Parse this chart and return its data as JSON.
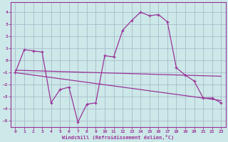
{
  "xlabel": "Windchill (Refroidissement éolien,°C)",
  "background_color": "#cce8e8",
  "grid_color": "#aabbcc",
  "line_color": "#993399",
  "xlim": [
    -0.5,
    23.5
  ],
  "ylim": [
    -5.5,
    4.8
  ],
  "yticks": [
    -5,
    -4,
    -3,
    -2,
    -1,
    0,
    1,
    2,
    3,
    4
  ],
  "xticks": [
    0,
    1,
    2,
    3,
    4,
    5,
    6,
    7,
    8,
    9,
    10,
    11,
    12,
    13,
    14,
    15,
    16,
    17,
    18,
    19,
    20,
    21,
    22,
    23
  ],
  "series1_x": [
    0,
    1,
    2,
    3,
    4,
    5,
    6,
    7,
    8,
    9,
    10,
    11,
    12,
    13,
    14,
    15,
    16,
    17,
    18,
    19,
    20,
    21,
    22,
    23
  ],
  "series1_y": [
    -1.0,
    0.9,
    0.8,
    0.7,
    -3.5,
    -2.4,
    -2.2,
    -5.1,
    -3.6,
    -3.5,
    0.4,
    0.3,
    2.5,
    3.3,
    4.0,
    3.7,
    3.8,
    3.2,
    -0.6,
    -1.2,
    -1.7,
    -3.1,
    -3.1,
    -3.5
  ],
  "trend1_x": [
    0,
    23
  ],
  "trend1_y": [
    -0.8,
    -1.3
  ],
  "trend2_x": [
    0,
    23
  ],
  "trend2_y": [
    -1.0,
    -3.3
  ]
}
